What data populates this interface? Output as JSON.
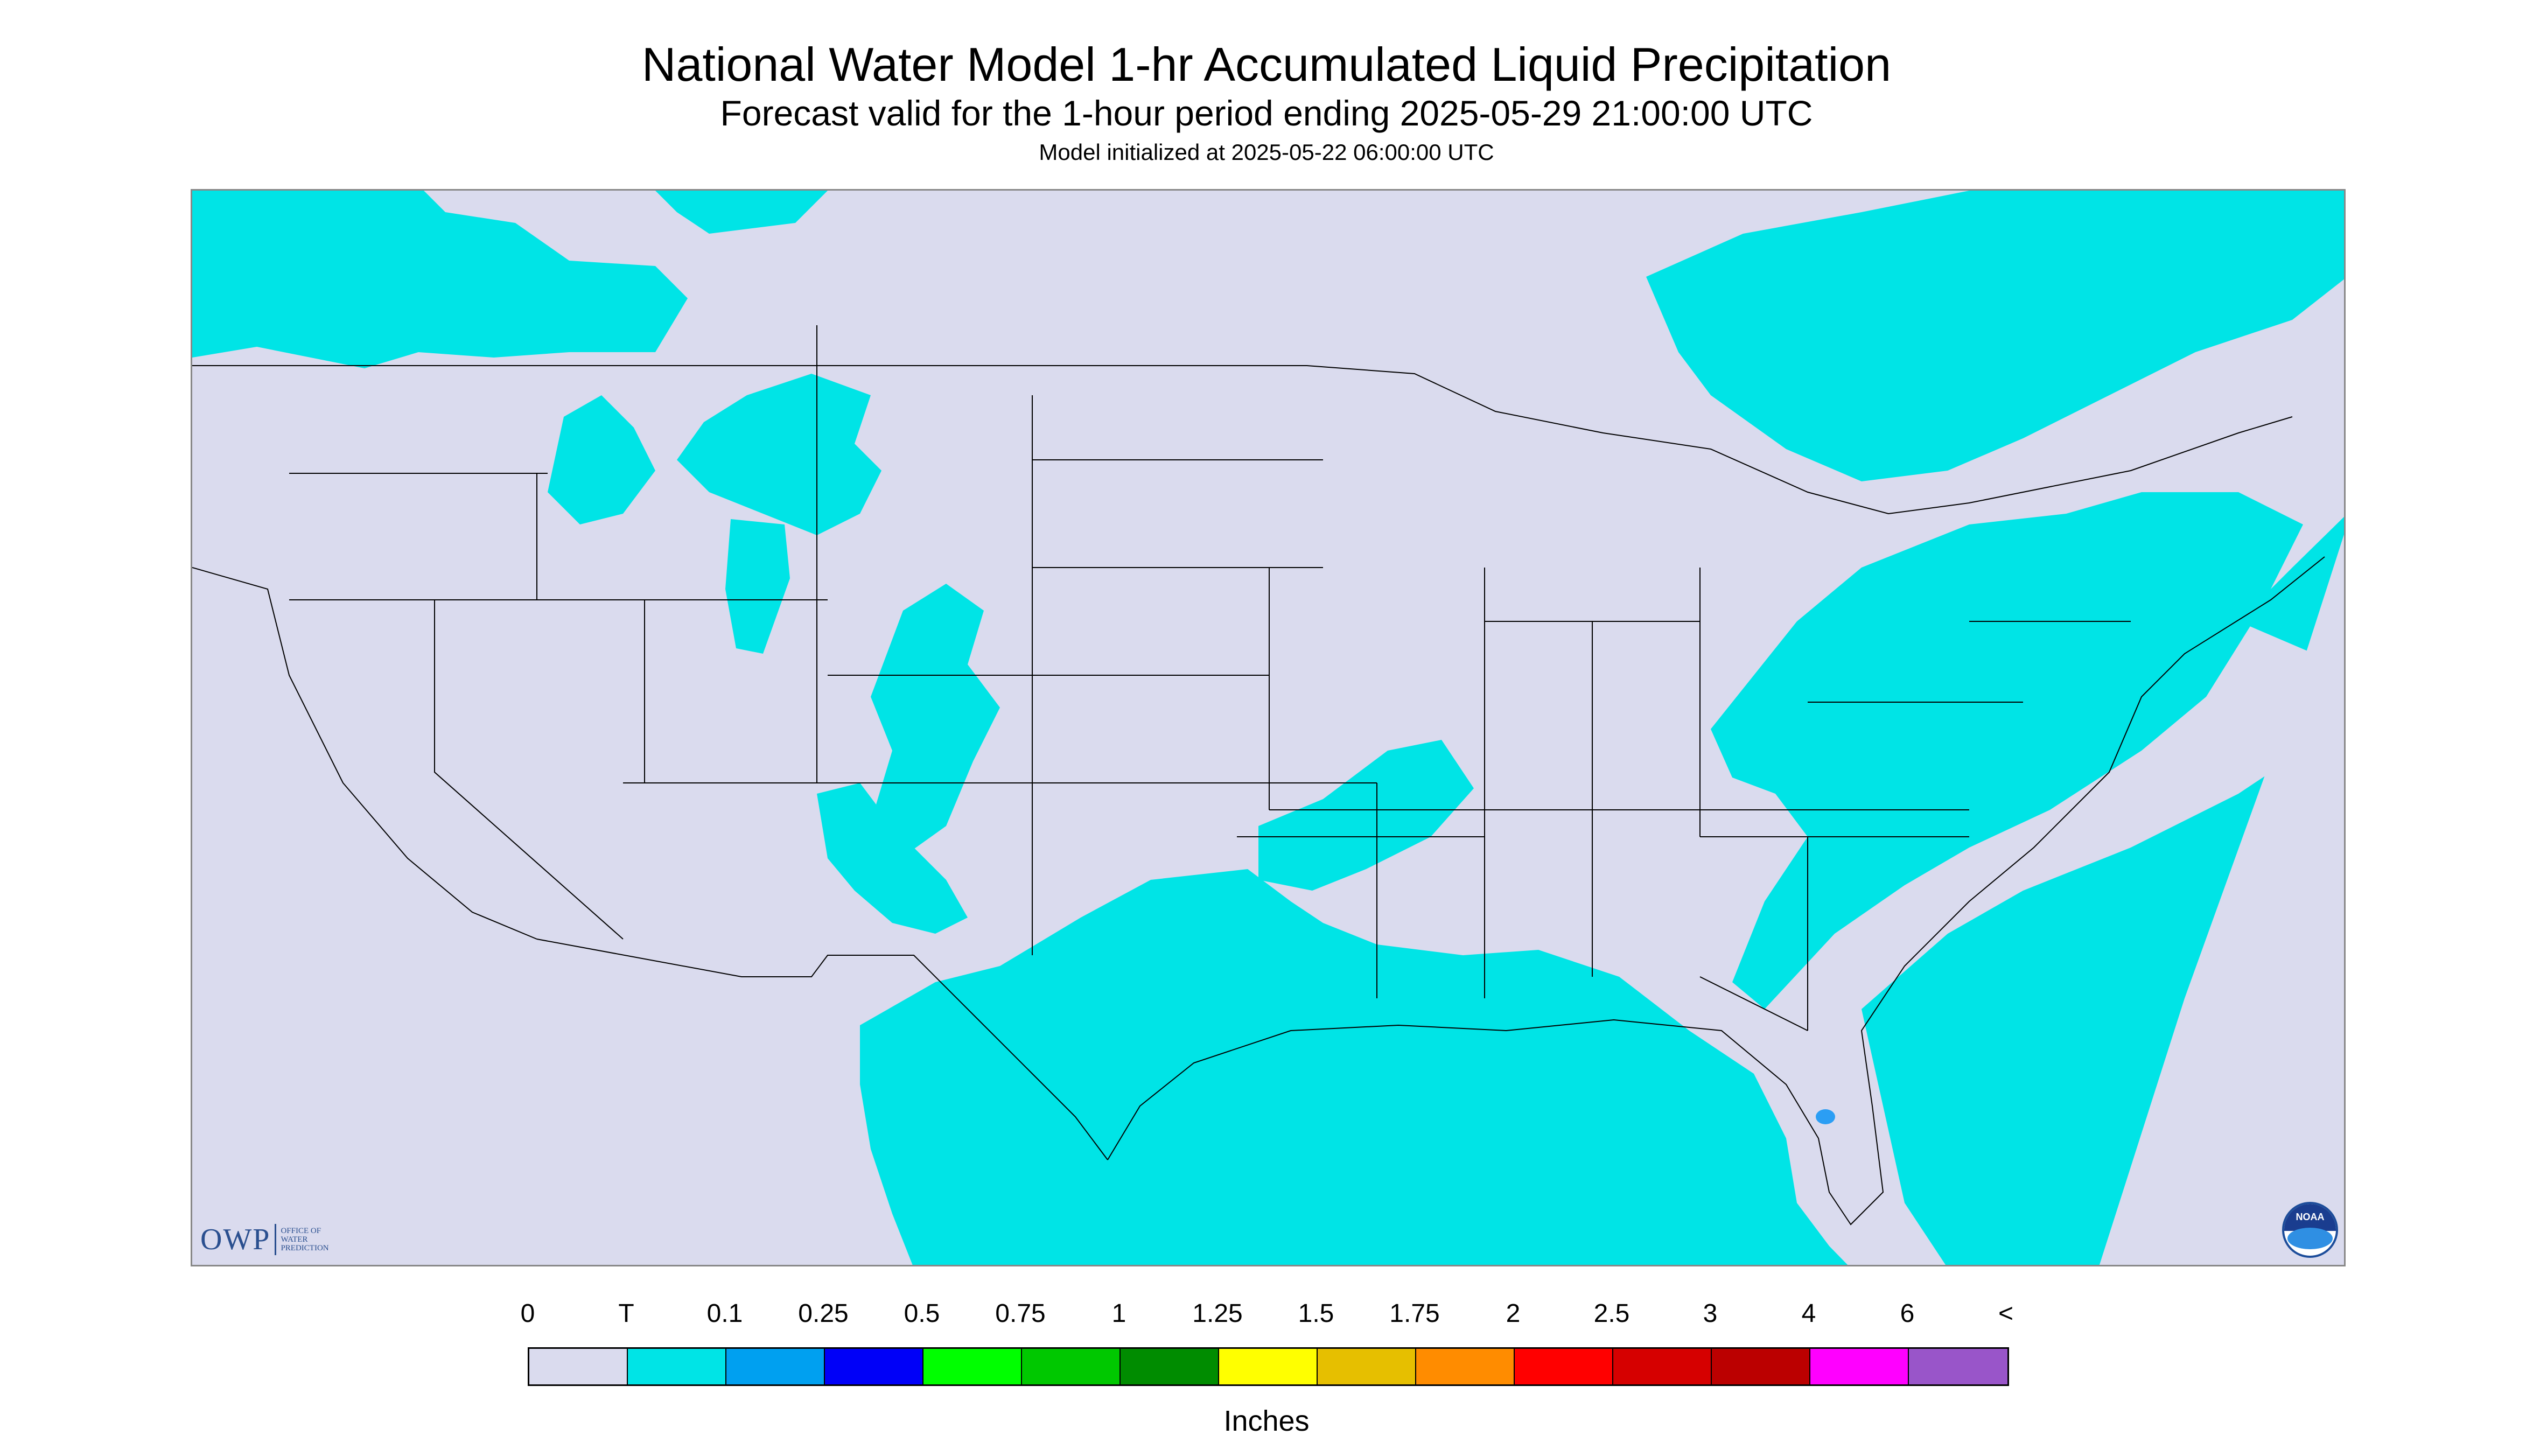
{
  "header": {
    "title": "National Water Model 1-hr Accumulated Liquid Precipitation",
    "subtitle": "Forecast valid for the 1-hour period ending 2025-05-29 21:00:00 UTC",
    "init": "Model initialized at 2025-05-22 06:00:00 UTC"
  },
  "map": {
    "background_color": "#dadbee",
    "precip_color": "#00e4e6",
    "heavier_color": "#2b9ef4",
    "boundary_color": "#000000"
  },
  "logos": {
    "owp_main": "OWP",
    "owp_lines": [
      "OFFICE OF",
      "WATER",
      "PREDICTION"
    ],
    "noaa_text": "NOAA"
  },
  "legend": {
    "labels": [
      "0",
      "T",
      "0.1",
      "0.25",
      "0.5",
      "0.75",
      "1",
      "1.25",
      "1.5",
      "1.75",
      "2",
      "2.5",
      "3",
      "4",
      "6",
      "<"
    ],
    "colors": [
      "#dadbee",
      "#00e4e6",
      "#00a0f0",
      "#0000f8",
      "#00ff00",
      "#00c800",
      "#008c00",
      "#ffff00",
      "#e6bf00",
      "#ff8c00",
      "#ff0000",
      "#d60000",
      "#bb0000",
      "#ff00ff",
      "#9955c9"
    ],
    "units": "Inches"
  }
}
